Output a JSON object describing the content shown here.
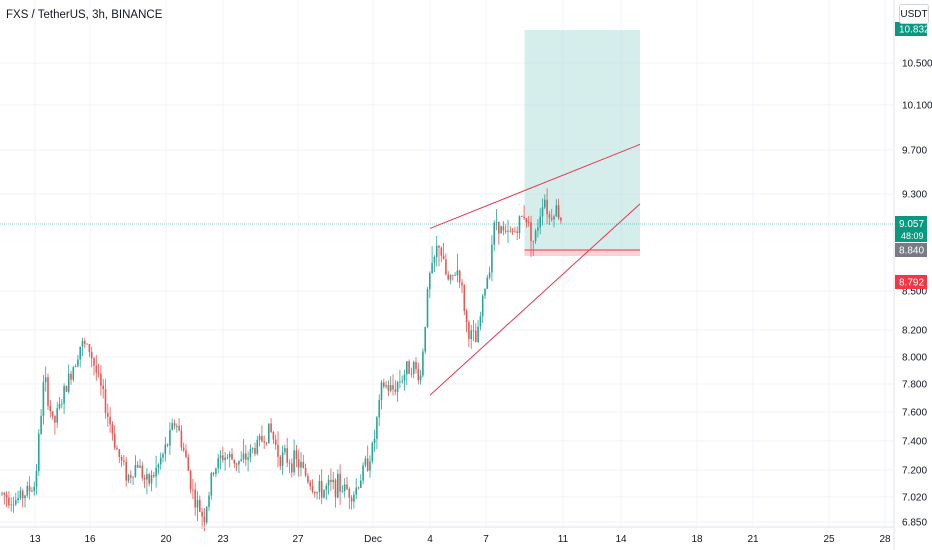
{
  "header": {
    "symbol_title": "FXS / TetherUS, 3h, BINANCE",
    "currency": "USDT"
  },
  "colors": {
    "up": "#26a69a",
    "down": "#ef5350",
    "target_zone": "#b2dfdb",
    "stop_zone": "#f8c7c9",
    "wedge_lines": "#e53950",
    "current_price_line": "#26a69a",
    "grid": "#f0f3fa"
  },
  "price_axis": {
    "ticks": [
      "10.500",
      "10.100",
      "9.700",
      "9.300",
      "8.500",
      "8.200",
      "8.000",
      "7.800",
      "7.600",
      "7.400",
      "7.200",
      "7.020",
      "6.850"
    ],
    "labels": {
      "target": "10.832",
      "current_price": "9.057",
      "countdown": "48:09",
      "entry": "8.840",
      "stop": "8.792"
    }
  },
  "time_axis": {
    "ticks": [
      "13",
      "16",
      "20",
      "23",
      "27",
      "Dec",
      "4",
      "7",
      "11",
      "14",
      "18",
      "21",
      "25",
      "28"
    ]
  },
  "chart_data": {
    "type": "candlestick",
    "title": "FXS / TetherUS, 3h, BINANCE",
    "exchange": "BINANCE",
    "interval": "3h",
    "ylim": [
      6.85,
      11.0
    ],
    "current_price": 9.057,
    "close_path": [
      [
        "Nov 10",
        6.95
      ],
      [
        "Nov 11",
        7.05
      ],
      [
        "Nov 12",
        7.0
      ],
      [
        "Nov 13",
        7.1
      ],
      [
        "Nov 13.5",
        7.85
      ],
      [
        "Nov 14",
        7.5
      ],
      [
        "Nov 14.5",
        7.7
      ],
      [
        "Nov 15",
        7.9
      ],
      [
        "Nov 15.5",
        8.1
      ],
      [
        "Nov 16",
        8.05
      ],
      [
        "Nov 16.5",
        7.8
      ],
      [
        "Nov 17",
        7.55
      ],
      [
        "Nov 17.5",
        7.3
      ],
      [
        "Nov 18",
        7.15
      ],
      [
        "Nov 18.5",
        7.25
      ],
      [
        "Nov 19",
        7.1
      ],
      [
        "Nov 19.5",
        7.2
      ],
      [
        "Nov 20",
        7.35
      ],
      [
        "Nov 20.5",
        7.55
      ],
      [
        "Nov 21",
        7.3
      ],
      [
        "Nov 21.5",
        7.0
      ],
      [
        "Nov 22",
        6.88
      ],
      [
        "Nov 22.5",
        7.2
      ],
      [
        "Nov 23",
        7.3
      ],
      [
        "Nov 24",
        7.25
      ],
      [
        "Nov 25",
        7.4
      ],
      [
        "Nov 25.5",
        7.48
      ],
      [
        "Nov 26",
        7.3
      ],
      [
        "Nov 27",
        7.25
      ],
      [
        "Nov 28",
        7.05
      ],
      [
        "Nov 29",
        7.1
      ],
      [
        "Nov 30",
        7.05
      ],
      [
        "Dec 1",
        7.35
      ],
      [
        "Dec 1.5",
        7.8
      ],
      [
        "Dec 2",
        7.75
      ],
      [
        "Dec 3",
        7.95
      ],
      [
        "Dec 3.5",
        7.85
      ],
      [
        "Dec 4",
        8.7
      ],
      [
        "Dec 4.5",
        8.9
      ],
      [
        "Dec 5",
        8.6
      ],
      [
        "Dec 5.5",
        8.75
      ],
      [
        "Dec 6",
        8.2
      ],
      [
        "Dec 6.5",
        8.1
      ],
      [
        "Dec 7",
        8.6
      ],
      [
        "Dec 7.5",
        9.1
      ],
      [
        "Dec 8",
        8.95
      ],
      [
        "Dec 8.5",
        9.0
      ],
      [
        "Dec 9",
        9.15
      ],
      [
        "Dec 9.5",
        8.9
      ],
      [
        "Dec 10",
        9.3
      ],
      [
        "Dec 10.3",
        9.1
      ],
      [
        "Dec 10.6",
        9.2
      ],
      [
        "Dec 11",
        9.057
      ]
    ],
    "rising_wedge": {
      "upper": [
        [
          "Dec 4",
          9.02
        ],
        [
          "Dec 15",
          9.75
        ]
      ],
      "lower": [
        [
          "Dec 4",
          7.72
        ],
        [
          "Dec 15",
          9.22
        ]
      ]
    },
    "long_position": {
      "entry": 8.84,
      "stop": 8.792,
      "target": 10.832,
      "start": "Dec 9",
      "end": "Dec 15"
    }
  }
}
